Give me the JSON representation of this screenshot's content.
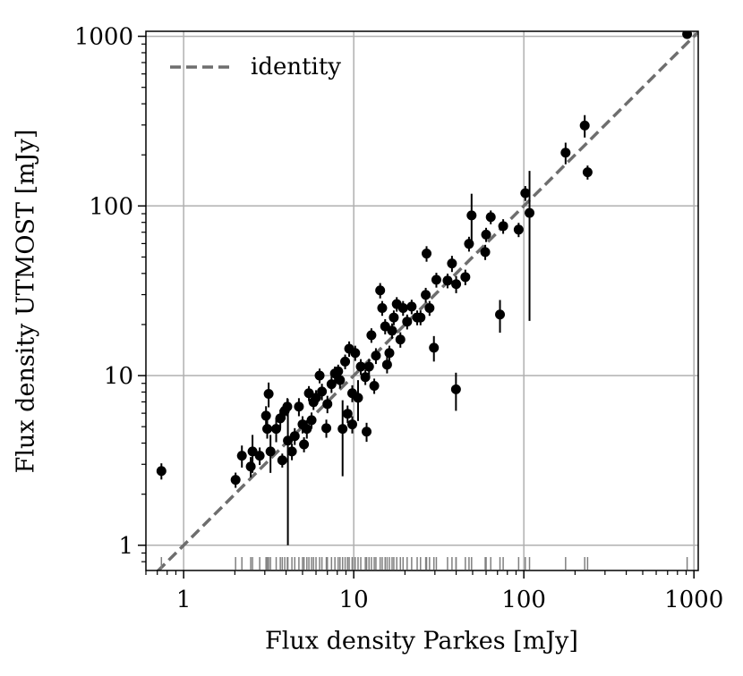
{
  "chart_data": {
    "type": "scatter",
    "log_x": true,
    "log_y": true,
    "grid": true,
    "legend": "upper left",
    "xlabel": "Flux density Parkes [mJy]",
    "ylabel": "Flux density UTMOST [mJy]",
    "xlim": [
      0.6,
      1060
    ],
    "ylim": [
      0.71,
      1070
    ],
    "xticks": [
      1,
      10,
      100,
      1000
    ],
    "yticks": [
      1,
      10,
      100,
      1000
    ],
    "series": [
      {
        "name": "identity",
        "kind": "line",
        "color": "#6e6e6e",
        "x": [
          0.6,
          1070
        ],
        "values": [
          0.6,
          1070
        ]
      },
      {
        "kind": "errorbar",
        "color": "#000000",
        "rug_color": "#808080",
        "x": [
          0.74,
          2.02,
          2.2,
          2.48,
          2.54,
          2.8,
          3.05,
          3.16,
          3.1,
          3.24,
          3.5,
          3.7,
          3.8,
          3.93,
          4.07,
          4.1,
          4.33,
          4.5,
          4.76,
          5.0,
          5.1,
          5.3,
          5.45,
          5.65,
          5.8,
          6.0,
          6.3,
          6.5,
          6.9,
          7.0,
          7.4,
          7.75,
          8.1,
          8.3,
          8.6,
          8.9,
          9.2,
          9.4,
          9.8,
          9.8,
          10.2,
          10.6,
          11,
          11.7,
          11.9,
          12.3,
          12.7,
          13.2,
          13.5,
          14.3,
          14.7,
          15.3,
          15.7,
          16.2,
          16.8,
          17.2,
          17.9,
          18.8,
          19.5,
          20.6,
          21.9,
          23.6,
          24.7,
          26.5,
          26.8,
          27.9,
          29.6,
          30.6,
          35.6,
          37.8,
          40,
          39.9,
          45.3,
          47.6,
          49.3,
          59.3,
          60,
          63.9,
          72.4,
          75.6,
          93.2,
          102,
          108,
          176,
          228,
          237,
          912
        ],
        "values": [
          2.74,
          2.43,
          3.37,
          2.91,
          3.57,
          3.37,
          5.8,
          7.8,
          4.85,
          3.57,
          4.85,
          5.6,
          3.17,
          6.2,
          6.56,
          4.14,
          3.57,
          4.4,
          6.56,
          5.16,
          3.93,
          4.85,
          7.87,
          5.46,
          6.97,
          7.4,
          10,
          8.05,
          4.9,
          6.8,
          8.9,
          10.3,
          10.6,
          9.4,
          4.85,
          12.1,
          5.96,
          14.4,
          7.87,
          5.16,
          13.6,
          7.4,
          11.3,
          9.8,
          4.67,
          11.3,
          17.3,
          8.7,
          13.1,
          31.8,
          25,
          19.5,
          11.6,
          13.6,
          18.4,
          22,
          26.4,
          16.3,
          25,
          20.8,
          25.5,
          22,
          22,
          29.9,
          52.4,
          25,
          14.6,
          36.7,
          36.3,
          45.8,
          34.6,
          8.3,
          38.1,
          59.8,
          88,
          53.5,
          67.8,
          86,
          22.9,
          76,
          72.5,
          119,
          91,
          206,
          298,
          158,
          1030
        ],
        "errors": [
          0.3,
          0.25,
          0.5,
          0.4,
          0.9,
          0.4,
          0.8,
          1.3,
          0.6,
          0.9,
          0.8,
          0.7,
          0.3,
          0.7,
          0.8,
          3.14,
          0.4,
          0.5,
          0.8,
          0.6,
          0.4,
          0.6,
          0.8,
          0.6,
          0.7,
          0.8,
          1.0,
          0.9,
          0.6,
          0.8,
          1.0,
          1.0,
          1.0,
          1.0,
          2.3,
          1.2,
          0.7,
          1.5,
          0.9,
          0.6,
          1.4,
          2.0,
          1.2,
          1.0,
          0.6,
          1.2,
          1.7,
          0.9,
          1.4,
          3.3,
          2.5,
          2.0,
          1.3,
          1.4,
          1.9,
          2.2,
          2.6,
          1.7,
          2.5,
          2.1,
          2.5,
          2.2,
          2.2,
          3.0,
          5.5,
          2.5,
          2.5,
          3.7,
          3.6,
          5.0,
          4.0,
          2.1,
          4.0,
          6.0,
          30,
          5.5,
          6.5,
          8.0,
          5.0,
          7.5,
          7.0,
          12,
          70,
          30,
          45,
          15,
          60
        ]
      }
    ]
  }
}
